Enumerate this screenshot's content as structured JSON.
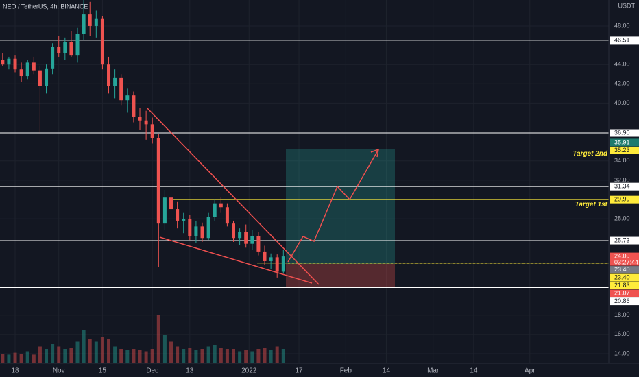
{
  "header": {
    "title": "NEO / TetherUS, 4h, BINANCE",
    "currency": "USDT"
  },
  "chart_data": {
    "type": "candlestick",
    "grid": true,
    "up_color": "#26a69a",
    "down_color": "#ef5350",
    "xlim": [
      -4.84,
      190.33
    ],
    "ylim": [
      13.0,
      50.7
    ],
    "xticks": [
      {
        "value": 0,
        "label": "18"
      },
      {
        "value": 14,
        "label": "Nov"
      },
      {
        "value": 28,
        "label": "15"
      },
      {
        "value": 44,
        "label": "Dec"
      },
      {
        "value": 56,
        "label": "13"
      },
      {
        "value": 75,
        "label": "2022"
      },
      {
        "value": 91,
        "label": "17"
      },
      {
        "value": 106,
        "label": "Feb"
      },
      {
        "value": 119,
        "label": "14"
      },
      {
        "value": 134,
        "label": "Mar"
      },
      {
        "value": 147,
        "label": "14"
      },
      {
        "value": 165,
        "label": "Apr"
      }
    ],
    "yticks": [
      {
        "value": 48,
        "label": "48.00"
      },
      {
        "value": 44,
        "label": "44.00"
      },
      {
        "value": 42,
        "label": "42.00"
      },
      {
        "value": 40,
        "label": "40.00"
      },
      {
        "value": 34,
        "label": "34.00"
      },
      {
        "value": 32,
        "label": "32.00"
      },
      {
        "value": 28,
        "label": "28.00"
      },
      {
        "value": 18,
        "label": "18.00"
      },
      {
        "value": 16,
        "label": "16.00"
      },
      {
        "value": 14,
        "label": "14.00"
      }
    ],
    "x": [
      -4,
      -2,
      0,
      2,
      4,
      6,
      8,
      10,
      12,
      14,
      16,
      18,
      20,
      22,
      24,
      26,
      28,
      30,
      32,
      34,
      36,
      38,
      40,
      42,
      44,
      46,
      48,
      50,
      52,
      54,
      56,
      58,
      60,
      62,
      64,
      66,
      68,
      70,
      72,
      74,
      76,
      78,
      80,
      82,
      84,
      86
    ],
    "open": [
      44.5,
      44.0,
      44.6,
      43.5,
      42.8,
      44.2,
      43.4,
      41.8,
      43.6,
      45.8,
      45.2,
      46.3,
      45.0,
      47.2,
      49.2,
      48.0,
      48.8,
      44.0,
      41.8,
      42.6,
      40.3,
      40.8,
      38.6,
      38.2,
      37.8,
      36.4,
      27.5,
      30.2,
      29.0,
      27.8,
      28.0,
      26.2,
      27.2,
      26.0,
      28.2,
      29.6,
      29.2,
      27.5,
      26.0,
      26.6,
      25.4,
      26.2,
      24.6,
      23.6,
      24.0,
      22.5
    ],
    "high": [
      45.2,
      44.8,
      45.0,
      44.2,
      44.5,
      44.8,
      43.8,
      44.0,
      46.2,
      47.0,
      46.8,
      47.5,
      47.8,
      50.7,
      50.5,
      49.6,
      49.0,
      44.8,
      43.5,
      43.0,
      41.5,
      41.2,
      39.5,
      39.2,
      38.5,
      36.8,
      31.0,
      31.6,
      29.8,
      28.6,
      28.4,
      27.8,
      27.6,
      28.6,
      30.0,
      30.2,
      29.6,
      27.8,
      27.0,
      27.4,
      26.8,
      26.6,
      25.2,
      24.4,
      24.3,
      24.8
    ],
    "low": [
      43.8,
      43.5,
      43.2,
      42.2,
      42.5,
      43.0,
      36.9,
      41.0,
      43.0,
      44.8,
      44.5,
      44.8,
      44.2,
      46.5,
      47.0,
      46.8,
      43.5,
      41.0,
      40.5,
      39.8,
      39.0,
      38.0,
      37.2,
      36.2,
      35.8,
      23.0,
      26.8,
      28.5,
      27.0,
      26.5,
      25.8,
      25.5,
      25.6,
      25.8,
      27.8,
      28.6,
      27.2,
      25.6,
      25.3,
      25.0,
      24.8,
      24.2,
      23.2,
      22.8,
      21.9,
      22.3
    ],
    "close": [
      44.0,
      44.6,
      43.5,
      42.8,
      44.2,
      43.4,
      41.8,
      43.6,
      45.8,
      45.2,
      46.3,
      45.0,
      47.2,
      49.2,
      48.0,
      48.8,
      44.0,
      41.8,
      42.6,
      40.3,
      40.8,
      38.6,
      38.2,
      37.8,
      36.4,
      27.5,
      30.2,
      29.0,
      27.8,
      28.0,
      26.2,
      27.2,
      26.0,
      28.2,
      29.6,
      29.2,
      27.5,
      26.0,
      26.6,
      25.4,
      26.2,
      24.6,
      23.6,
      24.0,
      22.5,
      24.09
    ],
    "volume": [
      20,
      18,
      22,
      20,
      25,
      18,
      35,
      30,
      40,
      35,
      30,
      32,
      45,
      70,
      50,
      45,
      55,
      50,
      35,
      30,
      28,
      30,
      28,
      25,
      30,
      100,
      60,
      45,
      35,
      30,
      32,
      28,
      30,
      35,
      38,
      32,
      30,
      30,
      25,
      28,
      25,
      30,
      32,
      28,
      35,
      30
    ],
    "levels": [
      {
        "value": 46.51,
        "color": "#ffffff"
      },
      {
        "value": 36.9,
        "color": "#ffffff"
      },
      {
        "value": 31.34,
        "color": "#ffffff"
      },
      {
        "value": 25.73,
        "color": "#ffffff"
      },
      {
        "value": 20.86,
        "color": "#ffffff"
      }
    ],
    "targets": [
      {
        "value": 35.23,
        "label": "Target 2nd",
        "from": 37,
        "color": "#ffeb3b"
      },
      {
        "value": 29.99,
        "label": "Target 1st",
        "from": 50,
        "color": "#ffeb3b"
      },
      {
        "value": 23.4,
        "from": 77.6,
        "color": "#ffeb3b"
      }
    ],
    "price_labels": [
      {
        "value": 46.51,
        "label": "46.51",
        "bg": "#ffffff",
        "fg": "#131722"
      },
      {
        "value": 36.9,
        "label": "36.90",
        "bg": "#ffffff",
        "fg": "#131722"
      },
      {
        "value": 35.91,
        "label": "35.91",
        "bg": "#1e7b6e",
        "fg": "#ffffff"
      },
      {
        "value": 35.23,
        "label": "35.23",
        "bg": "#ffeb3b",
        "fg": "#131722"
      },
      {
        "value": 31.34,
        "label": "31.34",
        "bg": "#ffffff",
        "fg": "#131722"
      },
      {
        "value": 29.99,
        "label": "29.99",
        "bg": "#ffeb3b",
        "fg": "#131722"
      },
      {
        "value": 25.73,
        "label": "25.73",
        "bg": "#ffffff",
        "fg": "#131722"
      },
      {
        "value": 24.09,
        "label": "24.09",
        "bg": "#ef5350",
        "fg": "#ffffff",
        "countdown": "03:27:44"
      },
      {
        "value": 23.4,
        "label": "23.40",
        "bg": "#787b86",
        "fg": "#ffffff"
      },
      {
        "value": 23.4,
        "label": "23.40",
        "bg": "#ffeb3b",
        "fg": "#131722"
      },
      {
        "value": 21.83,
        "label": "21.83",
        "bg": "#ffeb3b",
        "fg": "#131722"
      },
      {
        "value": 21.07,
        "label": "21.07",
        "bg": "#ef5350",
        "fg": "#ffffff"
      },
      {
        "value": 20.86,
        "label": "20.86",
        "bg": "#ffffff",
        "fg": "#131722"
      }
    ]
  }
}
